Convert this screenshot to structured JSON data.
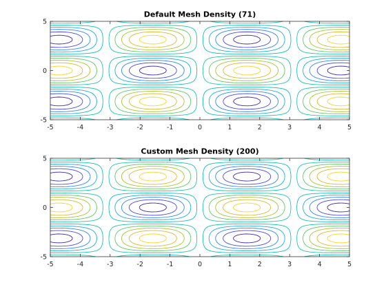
{
  "chart_data": [
    {
      "type": "contour",
      "title": "Default Mesh Density (71)",
      "function": "sin(x)*cos(y)",
      "mesh_density": 71,
      "xlim": [
        -5,
        5
      ],
      "ylim": [
        -5,
        5
      ],
      "x_ticks": [
        -5,
        -4,
        -3,
        -2,
        -1,
        0,
        1,
        2,
        3,
        4,
        5
      ],
      "y_ticks": [
        -5,
        0,
        5
      ],
      "levels": [
        -0.9,
        -0.7,
        -0.5,
        -0.3,
        -0.1,
        0.1,
        0.3,
        0.5,
        0.7,
        0.9
      ],
      "colormap": [
        "#3e26a8",
        "#4748f1",
        "#2e87f7",
        "#1cace0",
        "#0ebfbc",
        "#20c5aa",
        "#5ec962",
        "#a6c631",
        "#ddb833",
        "#f9d423"
      ],
      "grid": false
    },
    {
      "type": "contour",
      "title": "Custom Mesh Density (200)",
      "function": "sin(x)*cos(y)",
      "mesh_density": 200,
      "xlim": [
        -5,
        5
      ],
      "ylim": [
        -5,
        5
      ],
      "x_ticks": [
        -5,
        -4,
        -3,
        -2,
        -1,
        0,
        1,
        2,
        3,
        4,
        5
      ],
      "y_ticks": [
        -5,
        0,
        5
      ],
      "levels": [
        -0.9,
        -0.7,
        -0.5,
        -0.3,
        -0.1,
        0.1,
        0.3,
        0.5,
        0.7,
        0.9
      ],
      "colormap": [
        "#3e26a8",
        "#4748f1",
        "#2e87f7",
        "#1cace0",
        "#0ebfbc",
        "#20c5aa",
        "#5ec962",
        "#a6c631",
        "#ddb833",
        "#f9d423"
      ],
      "grid": false
    }
  ]
}
